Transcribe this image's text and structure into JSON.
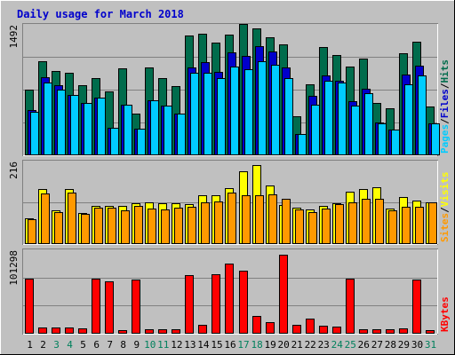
{
  "chart_data": {
    "type": "bar",
    "title": "Daily usage for March 2018",
    "categories": [
      "1",
      "2",
      "3",
      "4",
      "5",
      "6",
      "7",
      "8",
      "9",
      "10",
      "11",
      "12",
      "13",
      "14",
      "15",
      "16",
      "17",
      "18",
      "19",
      "20",
      "21",
      "22",
      "23",
      "24",
      "25",
      "26",
      "27",
      "28",
      "29",
      "30",
      "31"
    ],
    "weekend_days": [
      "3",
      "4",
      "10",
      "11",
      "17",
      "18",
      "24",
      "25",
      "31"
    ],
    "panels": [
      {
        "id": "hits",
        "ymax": 1492,
        "ytick_label": "1492",
        "legend": [
          "Pages",
          "/",
          "Files",
          "/",
          "Hits"
        ],
        "series": [
          {
            "name": "Hits",
            "color": "#006c4c",
            "values": [
              760,
              1080,
              970,
              955,
              810,
              885,
              740,
              1000,
              485,
              1010,
              890,
              795,
              1380,
              1395,
              1300,
              1385,
              1510,
              1465,
              1360,
              1280,
              445,
              815,
              1250,
              1150,
              1020,
              1110,
              605,
              545,
              1180,
              1310,
              565
            ]
          },
          {
            "name": "Files",
            "color": "#0000cc",
            "values": [
              520,
              900,
              810,
              700,
              600,
              660,
              320,
              580,
              310,
              630,
              570,
              480,
              1010,
              1070,
              960,
              1190,
              1140,
              1260,
              1200,
              1010,
              250,
              680,
              920,
              860,
              620,
              770,
              375,
              295,
              935,
              1030,
              370
            ]
          },
          {
            "name": "Pages",
            "color": "#00ccff",
            "values": [
              505,
              835,
              755,
              695,
              600,
              660,
              320,
              580,
              310,
              630,
              570,
              480,
              950,
              950,
              885,
              1020,
              990,
              1080,
              1045,
              890,
              250,
              580,
              860,
              835,
              575,
              720,
              370,
              295,
              820,
              920,
              370
            ]
          }
        ]
      },
      {
        "id": "visits",
        "ymax": 216,
        "ytick_label": "216",
        "legend": [
          "Sites",
          "/",
          "Visits"
        ],
        "series": [
          {
            "name": "Visits",
            "color": "#ffff00",
            "values": [
              68,
              145,
              89,
              145,
              82,
              101,
              101,
              100,
              109,
              110,
              108,
              108,
              105,
              128,
              128,
              148,
              192,
              208,
              155,
              104,
              97,
              92,
              102,
              108,
              138,
              145,
              150,
              93,
              125,
              116,
              110
            ]
          },
          {
            "name": "Sites",
            "color": "#ff9900",
            "values": [
              65,
              134,
              84,
              137,
              80,
              96,
              96,
              90,
              102,
              94,
              92,
              96,
              99,
              111,
              112,
              135,
              130,
              130,
              132,
              120,
              91,
              85,
              95,
              106,
              110,
              119,
              119,
              89,
              98,
              98,
              111
            ]
          }
        ]
      },
      {
        "id": "kbytes",
        "ymax": 101298,
        "ytick_label": "101298",
        "legend": [
          "KBytes"
        ],
        "series": [
          {
            "name": "KBytes",
            "color": "#ff0000",
            "values": [
              67000,
              8000,
              8000,
              8000,
              6000,
              68000,
              64000,
              4500,
              66000,
              5500,
              5500,
              5500,
              72000,
              11000,
              73000,
              86000,
              77000,
              22000,
              14000,
              97000,
              11000,
              18000,
              9500,
              8500,
              67000,
              5500,
              5500,
              5500,
              6500,
              66000,
              4000
            ]
          }
        ]
      }
    ],
    "legend_placement": "right-vertical",
    "grid": true
  }
}
